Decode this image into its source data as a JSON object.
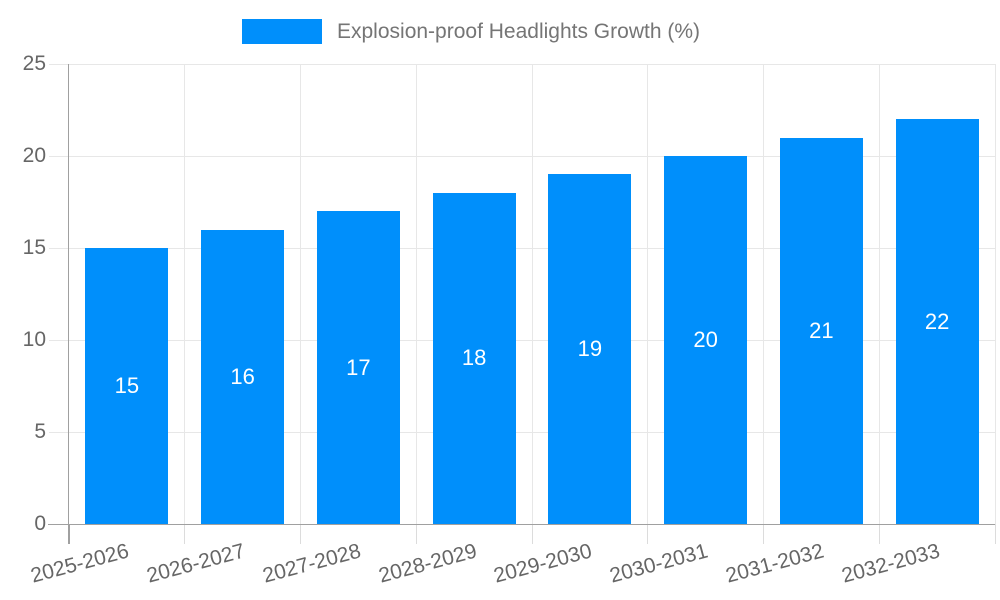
{
  "legend": {
    "label": "Explosion-proof Headlights Growth (%)"
  },
  "colors": {
    "bar": "#008FFB",
    "grid": "#e7e7e7",
    "axis": "#a0a0a0",
    "x_tick": "#dcdcdc",
    "tick_label": "#666666",
    "legend_text": "#757575",
    "value_label": "#ffffff",
    "background": "#ffffff"
  },
  "chart_data": {
    "type": "bar",
    "title": "Explosion-proof Headlights Growth (%)",
    "series_name": "Explosion-proof Headlights Growth (%)",
    "categories": [
      "2025-2026",
      "2026-2027",
      "2027-2028",
      "2028-2029",
      "2029-2030",
      "2030-2031",
      "2031-2032",
      "2032-2033"
    ],
    "values": [
      15,
      16,
      17,
      18,
      19,
      20,
      21,
      22
    ],
    "xlabel": "",
    "ylabel": "",
    "ylim": [
      0,
      25
    ],
    "yticks": [
      0,
      5,
      10,
      15,
      20,
      25
    ],
    "grid": true,
    "legend_position": "top-center",
    "value_labels": "inside-middle",
    "x_label_rotation_deg": -15
  }
}
